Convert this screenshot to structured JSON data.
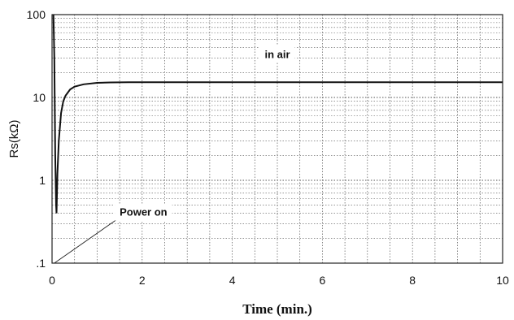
{
  "chart_data": {
    "type": "line",
    "xlabel": "Time (min.)",
    "ylabel": "Rs(kΩ)",
    "xlim": [
      0,
      10
    ],
    "ylim": [
      0.1,
      100
    ],
    "y_scale": "log",
    "grid": true,
    "x_ticks": [
      0,
      2,
      4,
      6,
      8,
      10
    ],
    "x_tick_labels": [
      "0",
      "2",
      "4",
      "6",
      "8",
      "10"
    ],
    "y_ticks": [
      0.1,
      1,
      10,
      100
    ],
    "y_tick_labels": [
      ".1",
      "1",
      "10",
      "100"
    ],
    "series": [
      {
        "x": [
          0.03,
          0.05,
          0.07,
          0.09,
          0.1,
          0.12,
          0.15,
          0.2,
          0.25,
          0.3,
          0.4,
          0.5,
          0.7,
          1.0,
          1.3,
          1.7,
          2.0,
          3,
          4,
          5,
          6,
          7,
          8,
          9,
          10
        ],
        "values": [
          100,
          30,
          2.0,
          0.5,
          0.4,
          1.2,
          3.0,
          6.5,
          9.0,
          10.5,
          12.5,
          13.5,
          14.4,
          15.0,
          15.2,
          15.3,
          15.3,
          15.3,
          15.3,
          15.3,
          15.3,
          15.3,
          15.3,
          15.3,
          15.3
        ]
      }
    ],
    "annotations": [
      {
        "text": "in air",
        "x": 5.0,
        "y": 32
      },
      {
        "text": "Power on",
        "x": 1.5,
        "y": 0.4,
        "points_to": {
          "x": 0.05,
          "y": 0.1
        }
      }
    ]
  }
}
